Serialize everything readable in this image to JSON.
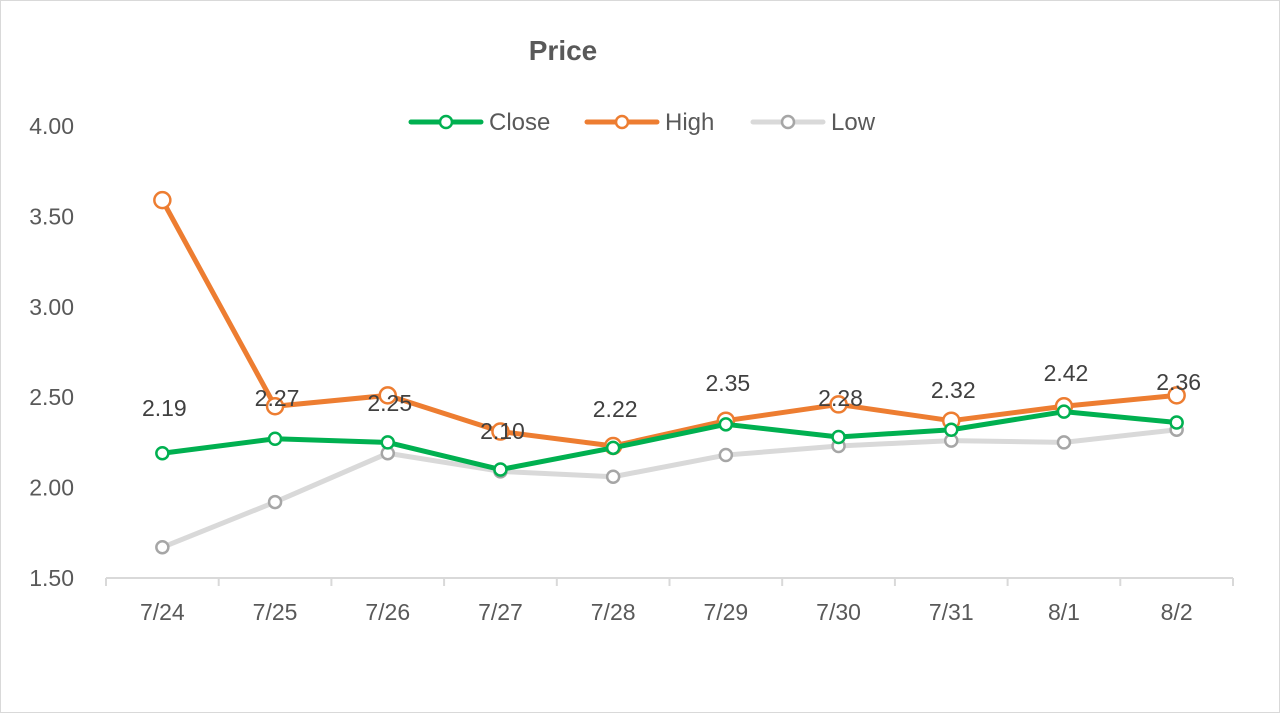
{
  "chart_data": {
    "type": "line",
    "title": "Price",
    "xlabel": "",
    "ylabel": "",
    "categories": [
      "7/24",
      "7/25",
      "7/26",
      "7/27",
      "7/28",
      "7/29",
      "7/30",
      "7/31",
      "8/1",
      "8/2"
    ],
    "ylim": [
      1.5,
      4.0
    ],
    "yticks": [
      "4.00",
      "3.50",
      "3.00",
      "2.50",
      "2.00",
      "1.50"
    ],
    "grid": false,
    "legend_position": "top",
    "series": [
      {
        "name": "Close",
        "color": "#00b050",
        "values": [
          2.19,
          2.27,
          2.25,
          2.1,
          2.22,
          2.35,
          2.28,
          2.32,
          2.42,
          2.36
        ],
        "data_labels": [
          "2.19",
          "2.27",
          "2.25",
          "2.10",
          "2.22",
          "2.35",
          "2.28",
          "2.32",
          "2.42",
          "2.36"
        ]
      },
      {
        "name": "High",
        "color": "#ed7d31",
        "values": [
          3.59,
          2.45,
          2.51,
          2.31,
          2.23,
          2.37,
          2.46,
          2.37,
          2.45,
          2.51
        ]
      },
      {
        "name": "Low",
        "color": "#d9d9d9",
        "values": [
          1.67,
          1.92,
          2.19,
          2.09,
          2.06,
          2.18,
          2.23,
          2.26,
          2.25,
          2.32
        ]
      }
    ]
  }
}
